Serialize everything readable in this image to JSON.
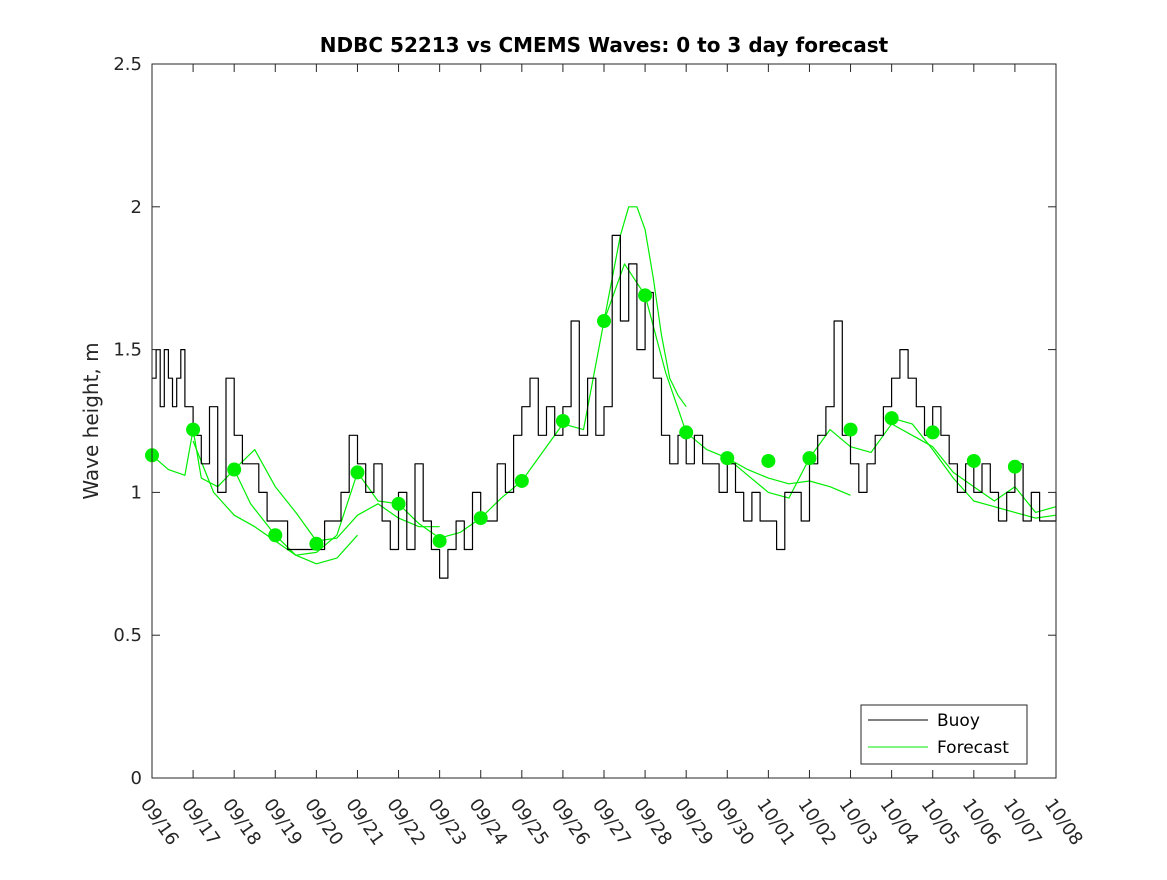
{
  "chart_data": {
    "type": "line",
    "title": "NDBC 52213 vs CMEMS Waves: 0 to 3 day forecast",
    "xlabel": "",
    "ylabel": "Wave height, m",
    "ylim": [
      0,
      2.5
    ],
    "xlim": [
      "09/16",
      "10/08"
    ],
    "yticks": [
      "0",
      "0.5",
      "1",
      "1.5",
      "2",
      "2.5"
    ],
    "xticks": [
      "09/16",
      "09/17",
      "09/18",
      "09/19",
      "09/20",
      "09/21",
      "09/22",
      "09/23",
      "09/24",
      "09/25",
      "09/26",
      "09/27",
      "09/28",
      "09/29",
      "09/30",
      "10/01",
      "10/02",
      "10/03",
      "10/04",
      "10/05",
      "10/06",
      "10/07",
      "10/08"
    ],
    "legend": {
      "location": "bottom-right",
      "entries": [
        "Buoy",
        "Forecast"
      ]
    },
    "colors": {
      "buoy": "#000000",
      "forecast": "#00ee00"
    },
    "series": [
      {
        "name": "Buoy",
        "x_unit": "days after 09/16",
        "x": [
          0.0,
          0.1,
          0.2,
          0.3,
          0.4,
          0.5,
          0.6,
          0.7,
          0.8,
          1.0,
          1.2,
          1.4,
          1.6,
          1.8,
          2.0,
          2.2,
          2.4,
          2.6,
          2.8,
          3.0,
          3.3,
          3.6,
          4.0,
          4.2,
          4.4,
          4.6,
          4.8,
          5.0,
          5.2,
          5.4,
          5.6,
          5.8,
          6.0,
          6.2,
          6.4,
          6.6,
          6.8,
          7.0,
          7.2,
          7.4,
          7.6,
          7.8,
          8.0,
          8.2,
          8.4,
          8.6,
          8.8,
          9.0,
          9.2,
          9.4,
          9.6,
          9.8,
          10.0,
          10.2,
          10.4,
          10.6,
          10.8,
          11.0,
          11.2,
          11.4,
          11.6,
          11.8,
          12.0,
          12.2,
          12.4,
          12.6,
          12.8,
          13.0,
          13.2,
          13.4,
          13.6,
          13.8,
          14.0,
          14.2,
          14.4,
          14.6,
          14.8,
          15.0,
          15.2,
          15.4,
          15.6,
          15.8,
          16.0,
          16.2,
          16.4,
          16.6,
          16.8,
          17.0,
          17.2,
          17.4,
          17.6,
          17.8,
          18.0,
          18.2,
          18.4,
          18.6,
          18.8,
          19.0,
          19.2,
          19.4,
          19.6,
          19.8,
          20.0,
          20.2,
          20.4,
          20.6,
          20.8,
          21.0,
          21.2,
          21.4,
          21.6,
          21.8,
          22.0
        ],
        "y": [
          1.4,
          1.5,
          1.3,
          1.5,
          1.4,
          1.3,
          1.4,
          1.5,
          1.3,
          1.2,
          1.1,
          1.3,
          1.0,
          1.4,
          1.2,
          1.1,
          1.1,
          1.0,
          0.9,
          0.9,
          0.8,
          0.8,
          0.8,
          0.9,
          0.9,
          1.0,
          1.2,
          1.1,
          1.0,
          1.1,
          0.9,
          0.8,
          1.0,
          0.8,
          1.1,
          0.9,
          0.8,
          0.7,
          0.8,
          0.9,
          0.8,
          1.0,
          0.9,
          0.9,
          1.1,
          1.0,
          1.2,
          1.3,
          1.4,
          1.2,
          1.3,
          1.2,
          1.3,
          1.6,
          1.2,
          1.4,
          1.2,
          1.3,
          1.9,
          1.6,
          1.8,
          1.5,
          1.7,
          1.4,
          1.2,
          1.1,
          1.2,
          1.1,
          1.2,
          1.1,
          1.1,
          1.0,
          1.1,
          1.0,
          0.9,
          1.0,
          0.9,
          0.9,
          0.8,
          1.0,
          1.0,
          0.9,
          1.1,
          1.2,
          1.3,
          1.6,
          1.2,
          1.1,
          1.0,
          1.1,
          1.2,
          1.3,
          1.4,
          1.5,
          1.4,
          1.3,
          1.2,
          1.3,
          1.2,
          1.1,
          1.0,
          1.1,
          1.0,
          1.1,
          1.0,
          0.9,
          1.0,
          1.1,
          0.9,
          1.0,
          0.9,
          0.9,
          1.0
        ]
      },
      {
        "name": "Forecast",
        "x_unit": "days after 09/16",
        "x": [
          0.0,
          0.4,
          0.8,
          1.0,
          1.2,
          1.6,
          2.0,
          2.4,
          3.0,
          3.5,
          4.0,
          4.5,
          5.0,
          5.5,
          6.0,
          6.5,
          7.0,
          7.5,
          8.0,
          8.5,
          9.0,
          9.5,
          10.0,
          10.5,
          11.0,
          11.5,
          12.0,
          12.5,
          13.0,
          13.5,
          14.0,
          14.5,
          15.0,
          15.5,
          16.0,
          16.5,
          17.0,
          17.5,
          18.0,
          18.5,
          19.0,
          19.5,
          20.0,
          20.5,
          21.0,
          21.5,
          22.0
        ],
        "y": [
          1.13,
          1.08,
          1.06,
          1.22,
          1.05,
          1.02,
          1.08,
          0.96,
          0.85,
          0.78,
          0.79,
          0.85,
          1.07,
          0.97,
          0.96,
          0.89,
          0.84,
          0.86,
          0.91,
          0.98,
          1.04,
          1.14,
          1.24,
          1.22,
          1.6,
          1.8,
          1.69,
          1.42,
          1.21,
          1.15,
          1.12,
          1.06,
          1.0,
          0.98,
          1.12,
          1.22,
          1.16,
          1.14,
          1.24,
          1.2,
          1.16,
          1.07,
          1.02,
          0.97,
          1.02,
          0.93,
          0.95
        ]
      },
      {
        "name": "",
        "x_unit": "days after 09/16",
        "x": [
          1.0,
          1.5,
          2.0,
          2.5,
          3.0,
          3.5,
          4.0,
          4.5,
          5.0
        ],
        "y": [
          1.18,
          1.0,
          0.92,
          0.88,
          0.83,
          0.78,
          0.75,
          0.77,
          0.85
        ]
      },
      {
        "name": "",
        "x_unit": "days after 09/16",
        "x": [
          2.0,
          2.5,
          3.0,
          3.5,
          4.0,
          4.5,
          5.0,
          5.5,
          6.0,
          6.5,
          7.0
        ],
        "y": [
          1.08,
          1.15,
          1.02,
          0.93,
          0.83,
          0.84,
          0.92,
          0.96,
          0.91,
          0.88,
          0.88
        ]
      },
      {
        "name": "",
        "x_unit": "days after 09/16",
        "x": [
          11.0,
          11.2,
          11.4,
          11.6,
          11.8,
          12.0,
          12.2,
          12.4,
          12.6,
          12.8,
          13.0
        ],
        "y": [
          1.6,
          1.75,
          1.9,
          2.0,
          2.0,
          1.92,
          1.75,
          1.55,
          1.4,
          1.34,
          1.3
        ]
      },
      {
        "name": "",
        "x_unit": "days after 09/16",
        "x": [
          14.0,
          14.5,
          15.0,
          15.5,
          16.0,
          16.5,
          17.0
        ],
        "y": [
          1.12,
          1.08,
          1.05,
          1.03,
          1.04,
          1.02,
          0.99
        ]
      },
      {
        "name": "",
        "x_unit": "days after 09/16",
        "x": [
          18.0,
          18.5,
          19.0,
          19.5,
          20.0,
          20.5,
          21.0,
          21.5,
          22.0
        ],
        "y": [
          1.26,
          1.24,
          1.15,
          1.05,
          0.97,
          0.95,
          0.93,
          0.91,
          0.92
        ]
      }
    ],
    "markers": {
      "x": [
        0,
        1,
        2,
        3,
        4,
        5,
        6,
        7,
        8,
        9,
        10,
        11,
        12,
        13,
        14,
        15,
        16,
        17,
        18,
        19,
        20,
        21
      ],
      "y": [
        1.13,
        1.22,
        1.08,
        0.85,
        0.82,
        1.07,
        0.96,
        0.83,
        0.91,
        1.04,
        1.25,
        1.6,
        1.69,
        1.21,
        1.12,
        1.11,
        1.12,
        1.22,
        1.26,
        1.21,
        1.11,
        1.09
      ]
    }
  }
}
